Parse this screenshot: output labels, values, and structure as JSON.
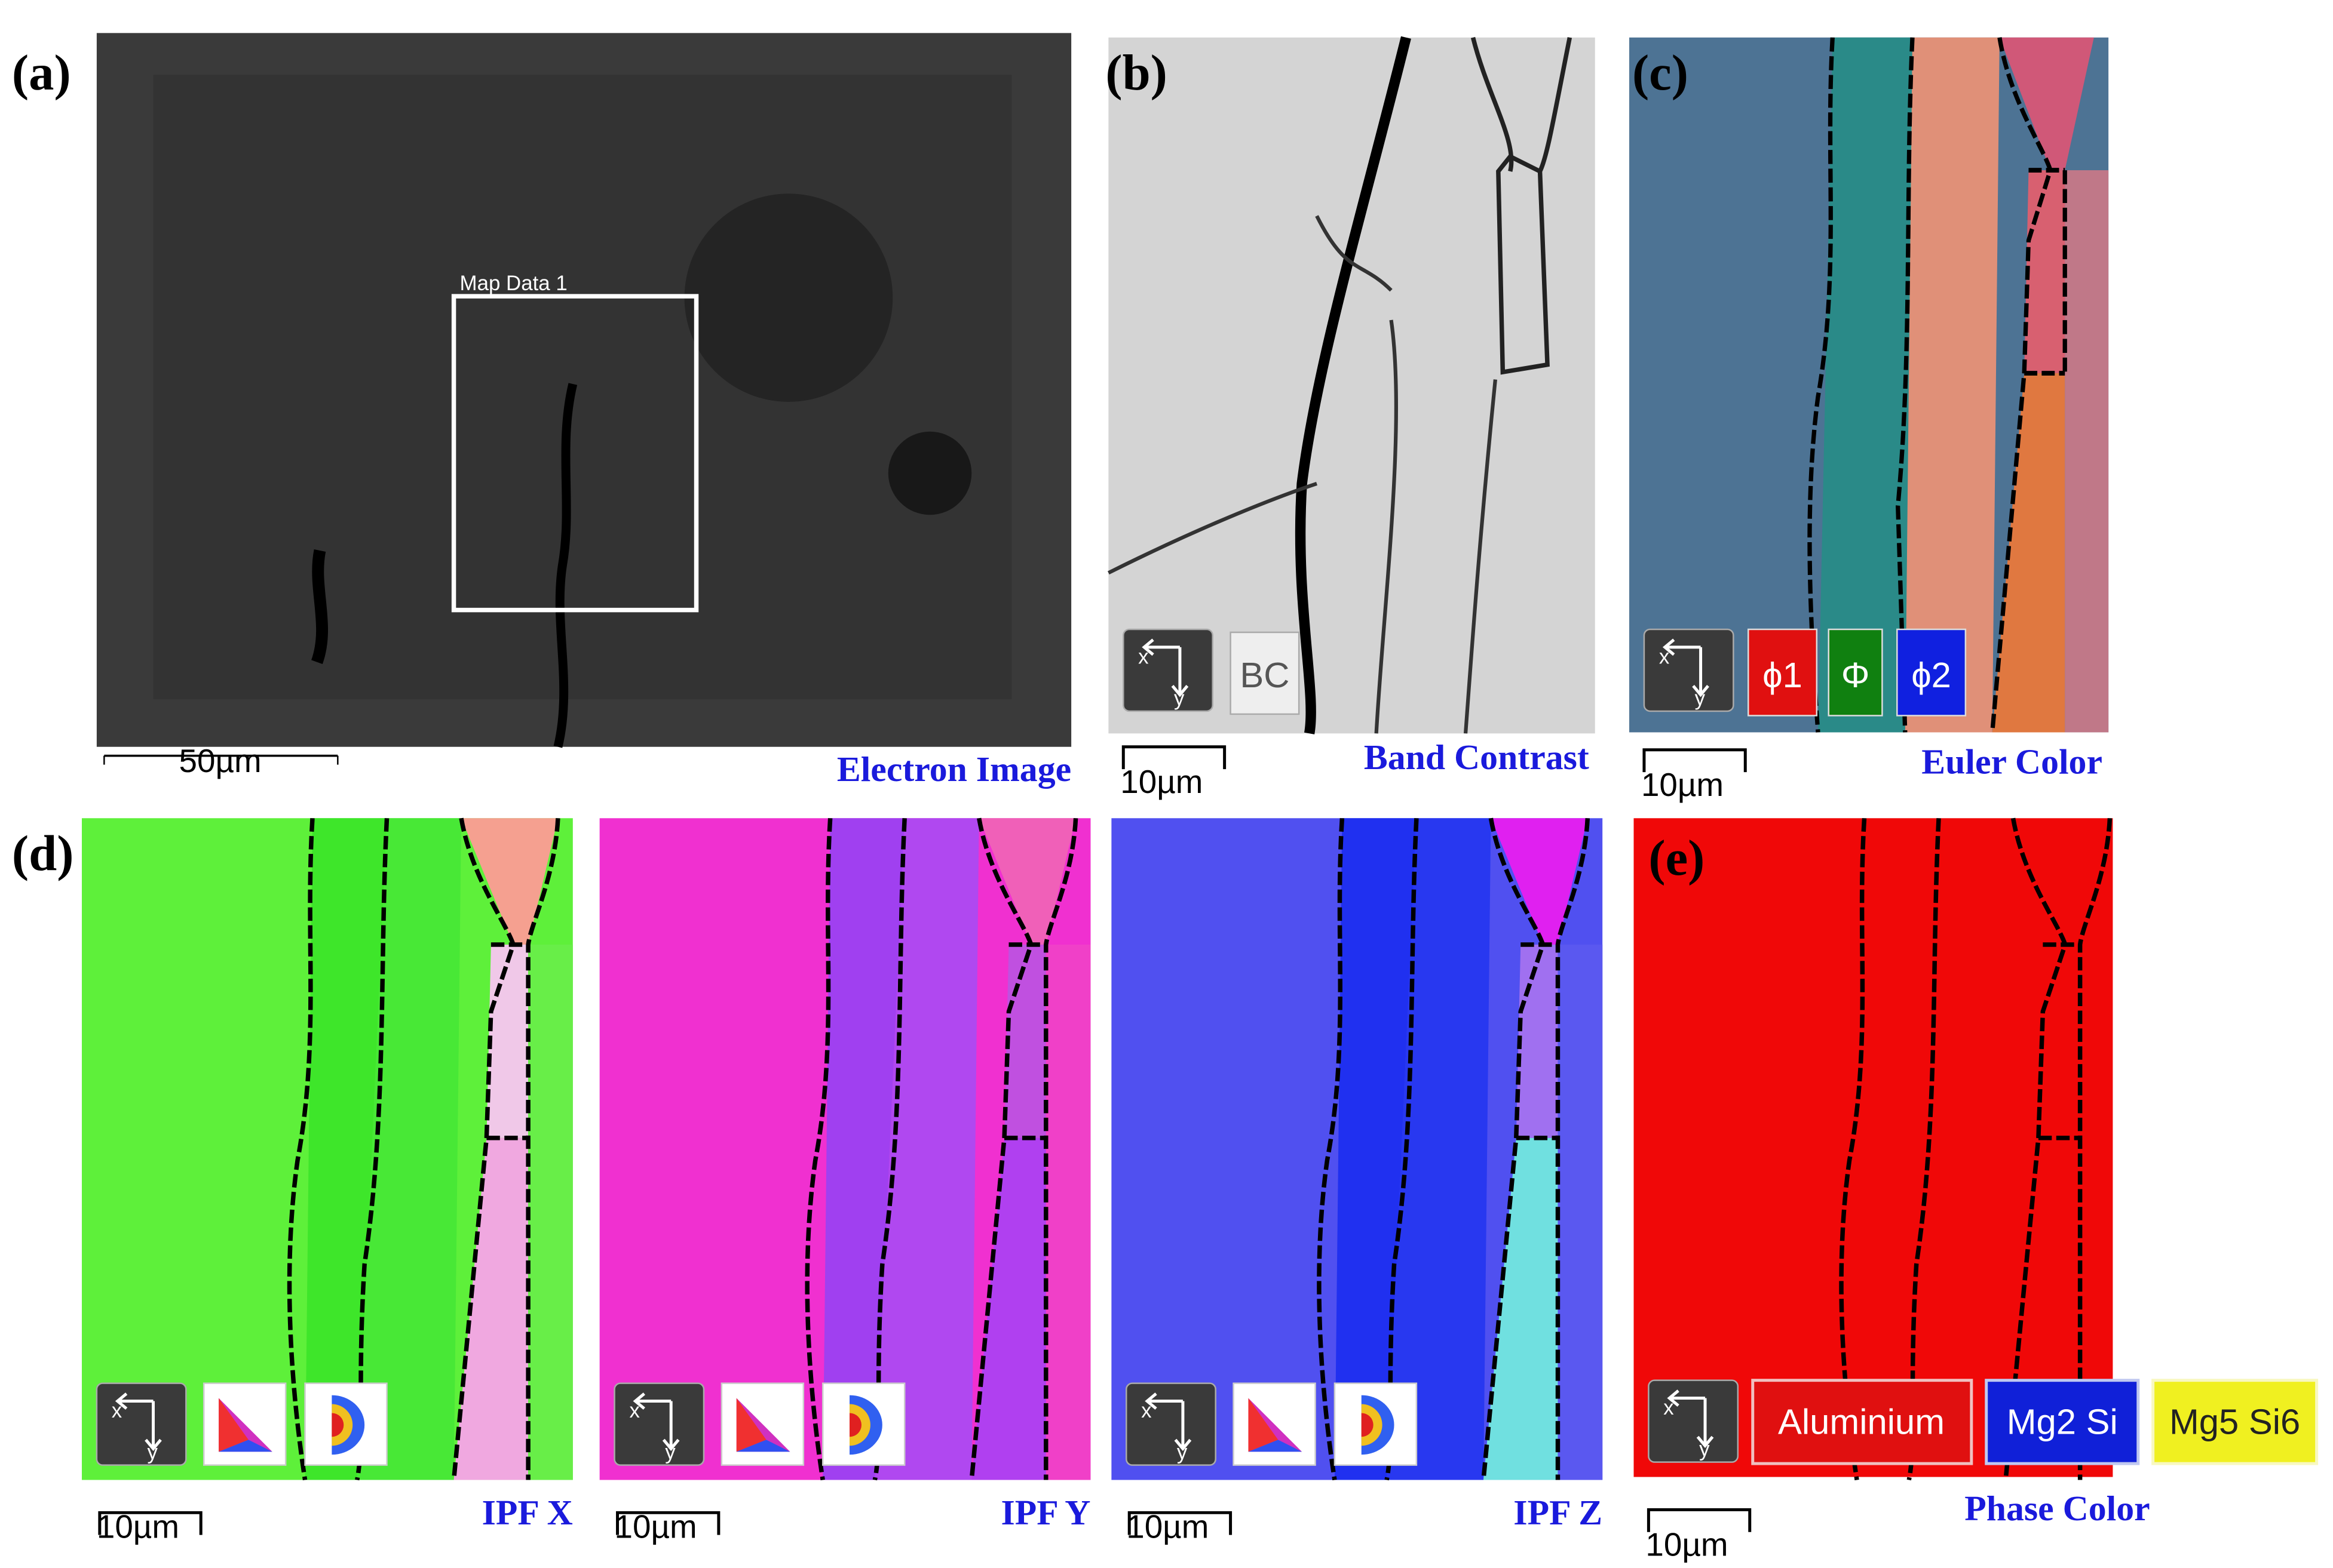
{
  "axis_icon": {
    "x": "x",
    "y": "y"
  },
  "panels": [
    {
      "label": "(a)",
      "caption": "Electron Image",
      "scale_bar": "50µm",
      "roi_label": "Map Data 1"
    },
    {
      "label": "(b)",
      "caption": "Band Contrast",
      "scale_bar": "10µm",
      "legend": [
        "BC"
      ]
    },
    {
      "label": "(c)",
      "caption": "Euler Color",
      "scale_bar": "10µm",
      "legend": [
        "ϕ1",
        "Φ",
        "ϕ2"
      ]
    },
    {
      "label": "(d)",
      "maps": [
        {
          "caption": "IPF X",
          "scale_bar": "10µm"
        },
        {
          "caption": "IPF Y",
          "scale_bar": "10µm"
        },
        {
          "caption": "IPF Z",
          "scale_bar": "10µm"
        }
      ]
    },
    {
      "label": "(e)",
      "caption": "Phase Color",
      "scale_bar": "10µm",
      "legend": [
        "Aluminium",
        "Mg2 Si",
        "Mg5 Si6"
      ]
    }
  ]
}
